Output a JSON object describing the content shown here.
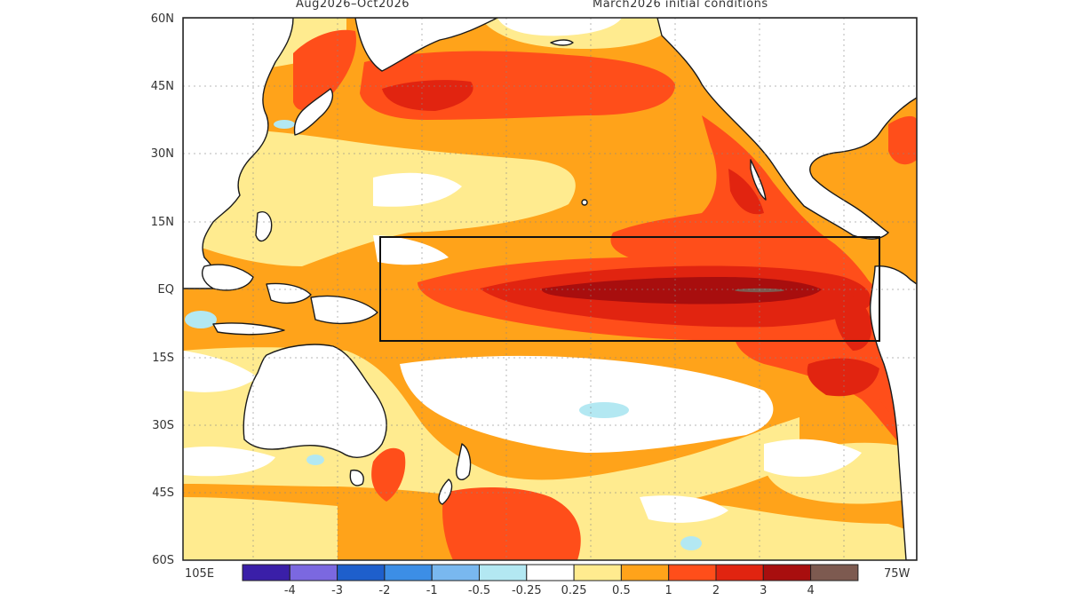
{
  "header": {
    "period": "Aug2026–Oct2026",
    "initial": "March2026 initial conditions"
  },
  "lat_labels": [
    "60N",
    "45N",
    "30N",
    "15N",
    "EQ",
    "15S",
    "30S",
    "45S",
    "60S"
  ],
  "lon_labels": {
    "west": "105E",
    "east": "75W"
  },
  "colorbar": {
    "labels": [
      "-4",
      "-3",
      "-2",
      "-1",
      "-0.5",
      "-0.25",
      "0.25",
      "0.5",
      "1",
      "2",
      "3",
      "4"
    ],
    "colors": [
      "#3a1fa8",
      "#7b68e0",
      "#1e5fcc",
      "#3c8ee6",
      "#79b8ef",
      "#b3e8f2",
      "#ffffff",
      "#ffeb8f",
      "#ffa31a",
      "#ff4e1a",
      "#e12410",
      "#a80e0e",
      "#7d5a50"
    ]
  },
  "map": {
    "land_color": "#ffffff",
    "coast_color": "#1a1a1a",
    "box_region": "Niño 3.4 / equatorial Pacific outlined box"
  }
}
